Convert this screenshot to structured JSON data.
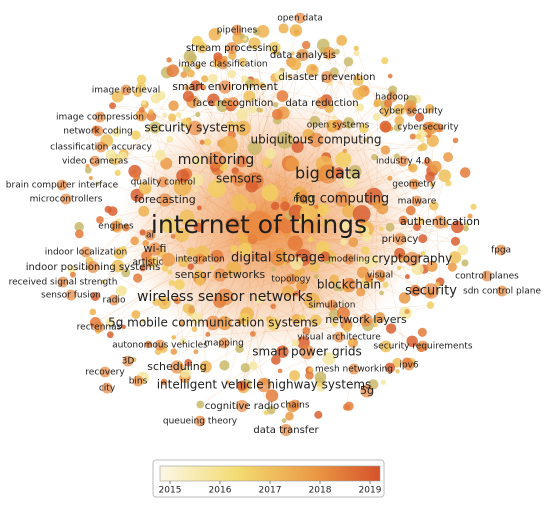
{
  "nodes": [
    {
      "label": "open data"
    },
    {
      "label": "pipelines"
    },
    {
      "label": "stream processing"
    },
    {
      "label": "data analysis"
    },
    {
      "label": "image classification"
    },
    {
      "label": "disaster prevention"
    },
    {
      "label": "image retrieval"
    },
    {
      "label": "smart environment"
    },
    {
      "label": "hadoop"
    },
    {
      "label": "face recognition"
    },
    {
      "label": "data reduction"
    },
    {
      "label": "cyber security"
    },
    {
      "label": "image compression"
    },
    {
      "label": "open systems"
    },
    {
      "label": "cybersecurity"
    },
    {
      "label": "network coding"
    },
    {
      "label": "security systems"
    },
    {
      "label": "ubiquitous computing"
    },
    {
      "label": "classification accuracy"
    },
    {
      "label": "video cameras"
    },
    {
      "label": "monitoring"
    },
    {
      "label": "industry 4.0"
    },
    {
      "label": "brain computer interface"
    },
    {
      "label": "quality control"
    },
    {
      "label": "sensors"
    },
    {
      "label": "big data"
    },
    {
      "label": "geometry"
    },
    {
      "label": "microcontrollers"
    },
    {
      "label": "forecasting"
    },
    {
      "label": "fog computing"
    },
    {
      "label": "malware"
    },
    {
      "label": "mqtt"
    },
    {
      "label": "internet of things"
    },
    {
      "label": "authentication"
    },
    {
      "label": "engines"
    },
    {
      "label": "ai"
    },
    {
      "label": "privacy"
    },
    {
      "label": "wi-fi"
    },
    {
      "label": "fpga"
    },
    {
      "label": "indoor localization"
    },
    {
      "label": "digital storage"
    },
    {
      "label": "integration"
    },
    {
      "label": "modeling"
    },
    {
      "label": "cryptography"
    },
    {
      "label": "indoor positioning systems"
    },
    {
      "label": "artistic"
    },
    {
      "label": "visual"
    },
    {
      "label": "control planes"
    },
    {
      "label": "sensor networks"
    },
    {
      "label": "topology"
    },
    {
      "label": "received signal strength"
    },
    {
      "label": "blockchain"
    },
    {
      "label": "security"
    },
    {
      "label": "sdn control plane"
    },
    {
      "label": "sensor fusion"
    },
    {
      "label": "radio"
    },
    {
      "label": "wireless sensor networks"
    },
    {
      "label": "simulation"
    },
    {
      "label": "network layers"
    },
    {
      "label": "rectennas"
    },
    {
      "label": "5g mobile communication systems"
    },
    {
      "label": "visual architecture"
    },
    {
      "label": "mapping"
    },
    {
      "label": "autonomous vehicles"
    },
    {
      "label": "security requirements"
    },
    {
      "label": "smart power grids"
    },
    {
      "label": "3D"
    },
    {
      "label": "scheduling"
    },
    {
      "label": "mesh networking"
    },
    {
      "label": "ipv6"
    },
    {
      "label": "recovery"
    },
    {
      "label": "5g"
    },
    {
      "label": "bins"
    },
    {
      "label": "intelligent vehicle highway systems"
    },
    {
      "label": "city"
    },
    {
      "label": "cognitive radio"
    },
    {
      "label": "chains"
    },
    {
      "label": "queueing theory"
    },
    {
      "label": "data transfer"
    }
  ],
  "colorbar": {
    "lim": [
      2014.8,
      2019.2
    ],
    "ticks": [
      2015,
      2016,
      2017,
      2018,
      2019
    ]
  }
}
